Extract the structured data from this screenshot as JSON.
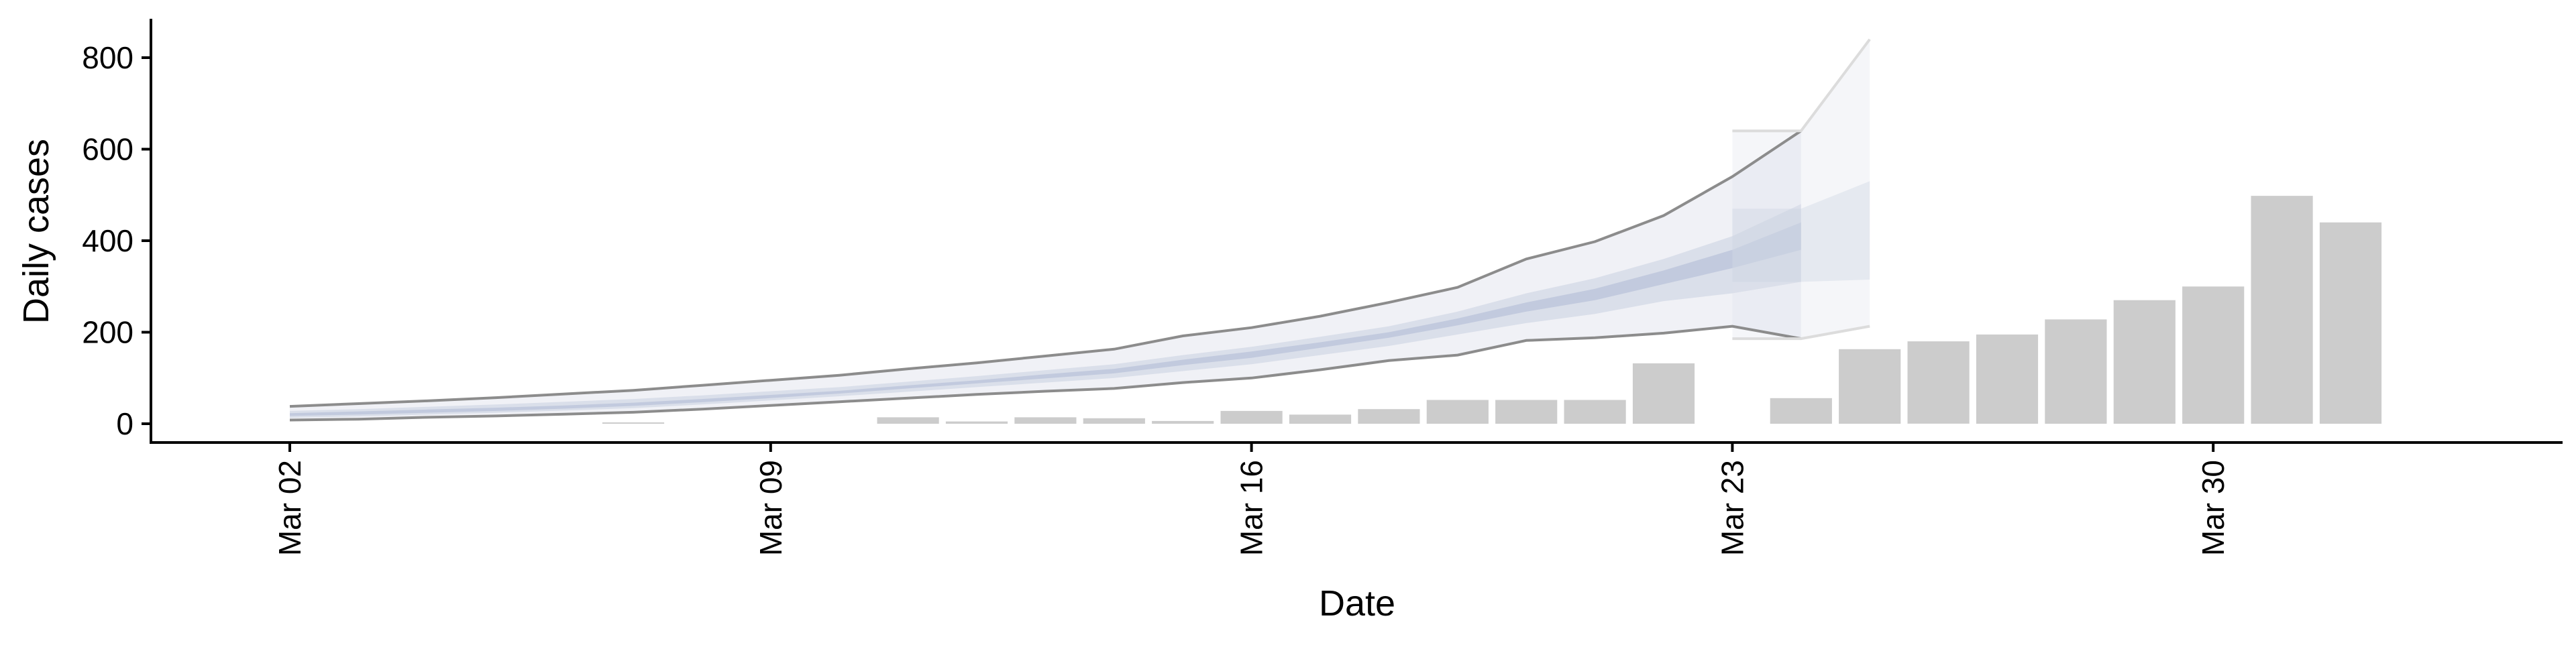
{
  "chart_data": {
    "type": "bar",
    "xlabel": "Date",
    "ylabel": "Daily cases",
    "ylim": [
      -40,
      880
    ],
    "yticks": [
      0,
      200,
      400,
      600,
      800
    ],
    "xtick_labels": [
      "Mar 02",
      "Mar 09",
      "Mar 16",
      "Mar 23",
      "Mar 30"
    ],
    "xtick_days": [
      2,
      9,
      16,
      23,
      30
    ],
    "xlim_days": [
      -0.1,
      35.2
    ],
    "grid": false,
    "colors": {
      "bars": "#cccccc",
      "band_outer": "#dde1ea",
      "band_mid": "#c9d0e0",
      "band_inner": "#b3bdd5",
      "bound_line": "#8c8c8c"
    },
    "bars": [
      {
        "day": 7,
        "value": 2
      },
      {
        "day": 11,
        "value": 14
      },
      {
        "day": 12,
        "value": 5
      },
      {
        "day": 13,
        "value": 14
      },
      {
        "day": 14,
        "value": 12
      },
      {
        "day": 15,
        "value": 6
      },
      {
        "day": 16,
        "value": 28
      },
      {
        "day": 17,
        "value": 20
      },
      {
        "day": 18,
        "value": 32
      },
      {
        "day": 19,
        "value": 52
      },
      {
        "day": 20,
        "value": 52
      },
      {
        "day": 21,
        "value": 52
      },
      {
        "day": 22,
        "value": 132
      },
      {
        "day": 24,
        "value": 56
      },
      {
        "day": 25,
        "value": 163
      },
      {
        "day": 26,
        "value": 180
      },
      {
        "day": 27,
        "value": 195
      },
      {
        "day": 28,
        "value": 228
      },
      {
        "day": 29,
        "value": 270
      },
      {
        "day": 30,
        "value": 300
      },
      {
        "day": 31,
        "value": 498
      },
      {
        "day": 32,
        "value": 440
      }
    ],
    "forecast_band": {
      "days": [
        2,
        3,
        4,
        5,
        6,
        7,
        8,
        9,
        10,
        11,
        12,
        13,
        14,
        15,
        16,
        17,
        18,
        19,
        20,
        21,
        22,
        23,
        24
      ],
      "outer_low": [
        8,
        10,
        14,
        17,
        21,
        25,
        32,
        40,
        48,
        56,
        64,
        71,
        77,
        90,
        100,
        118,
        138,
        150,
        182,
        188,
        198,
        213,
        186
      ],
      "outer_high": [
        38,
        44,
        50,
        57,
        65,
        73,
        84,
        95,
        106,
        120,
        133,
        148,
        163,
        192,
        210,
        235,
        265,
        298,
        360,
        398,
        455,
        540,
        640
      ],
      "mid_low": [
        13,
        16,
        20,
        24,
        29,
        34,
        42,
        51,
        60,
        70,
        80,
        90,
        100,
        115,
        130,
        150,
        170,
        195,
        220,
        240,
        268,
        285,
        310
      ],
      "mid_high": [
        28,
        32,
        37,
        42,
        48,
        54,
        62,
        71,
        80,
        92,
        104,
        117,
        130,
        150,
        168,
        190,
        213,
        245,
        285,
        318,
        360,
        410,
        480
      ],
      "inner_low": [
        17,
        20,
        24,
        28,
        33,
        39,
        47,
        56,
        66,
        77,
        88,
        99,
        110,
        128,
        144,
        166,
        188,
        215,
        245,
        270,
        305,
        340,
        380
      ],
      "inner_high": [
        23,
        27,
        31,
        35,
        40,
        46,
        54,
        63,
        72,
        84,
        95,
        108,
        120,
        140,
        158,
        178,
        200,
        230,
        265,
        295,
        335,
        380,
        440
      ],
      "extension": {
        "days": [
          23,
          24,
          25
        ],
        "outer_low": [
          186,
          186,
          213
        ],
        "outer_high": [
          640,
          640,
          840
        ],
        "mid_low": [
          310,
          310,
          315
        ],
        "mid_high": [
          470,
          470,
          530
        ]
      }
    }
  }
}
